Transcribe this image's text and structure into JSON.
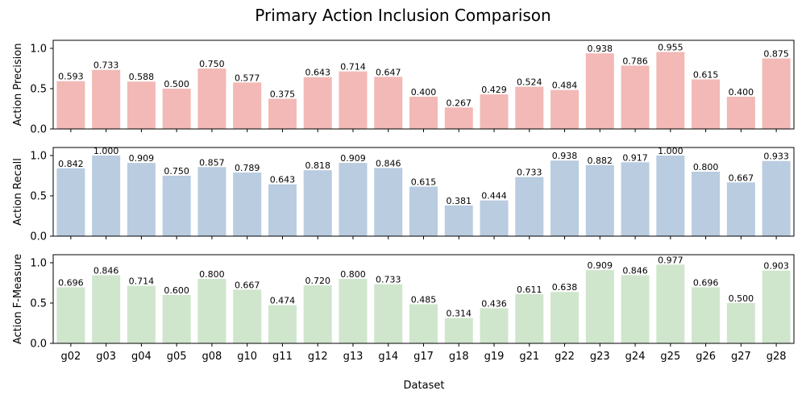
{
  "chart_data": {
    "type": "bar",
    "title": "Primary Action Inclusion Comparison",
    "xlabel": "Dataset",
    "categories": [
      "g02",
      "g03",
      "g04",
      "g05",
      "g08",
      "g10",
      "g11",
      "g12",
      "g13",
      "g14",
      "g17",
      "g18",
      "g19",
      "g21",
      "g22",
      "g23",
      "g24",
      "g25",
      "g26",
      "g27",
      "g28"
    ],
    "ylim": [
      0,
      1.1
    ],
    "yticks": [
      "0.0",
      "0.5",
      "1.0"
    ],
    "grid": false,
    "panels": [
      {
        "ylabel": "Action Precision",
        "color": "#f2b9b6",
        "values": [
          0.593,
          0.733,
          0.588,
          0.5,
          0.75,
          0.577,
          0.375,
          0.643,
          0.714,
          0.647,
          0.4,
          0.267,
          0.429,
          0.524,
          0.484,
          0.938,
          0.786,
          0.955,
          0.615,
          0.4,
          0.875
        ],
        "labels": [
          "0.593",
          "0.733",
          "0.588",
          "0.500",
          "0.750",
          "0.577",
          "0.375",
          "0.643",
          "0.714",
          "0.647",
          "0.400",
          "0.267",
          "0.429",
          "0.524",
          "0.484",
          "0.938",
          "0.786",
          "0.955",
          "0.615",
          "0.400",
          "0.875"
        ]
      },
      {
        "ylabel": "Action Recall",
        "color": "#b9cce0",
        "values": [
          0.842,
          1.0,
          0.909,
          0.75,
          0.857,
          0.789,
          0.643,
          0.818,
          0.909,
          0.846,
          0.615,
          0.381,
          0.444,
          0.733,
          0.938,
          0.882,
          0.917,
          1.0,
          0.8,
          0.667,
          0.933
        ],
        "labels": [
          "0.842",
          "1.000",
          "0.909",
          "0.750",
          "0.857",
          "0.789",
          "0.643",
          "0.818",
          "0.909",
          "0.846",
          "0.615",
          "0.381",
          "0.444",
          "0.733",
          "0.938",
          "0.882",
          "0.917",
          "1.000",
          "0.800",
          "0.667",
          "0.933"
        ]
      },
      {
        "ylabel": "Action F-Measure",
        "color": "#cfe6cc",
        "values": [
          0.696,
          0.846,
          0.714,
          0.6,
          0.8,
          0.667,
          0.474,
          0.72,
          0.8,
          0.733,
          0.485,
          0.314,
          0.436,
          0.611,
          0.638,
          0.909,
          0.846,
          0.977,
          0.696,
          0.5,
          0.903
        ],
        "labels": [
          "0.696",
          "0.846",
          "0.714",
          "0.600",
          "0.800",
          "0.667",
          "0.474",
          "0.720",
          "0.800",
          "0.733",
          "0.485",
          "0.314",
          "0.436",
          "0.611",
          "0.638",
          "0.909",
          "0.846",
          "0.977",
          "0.696",
          "0.500",
          "0.903"
        ]
      }
    ]
  }
}
